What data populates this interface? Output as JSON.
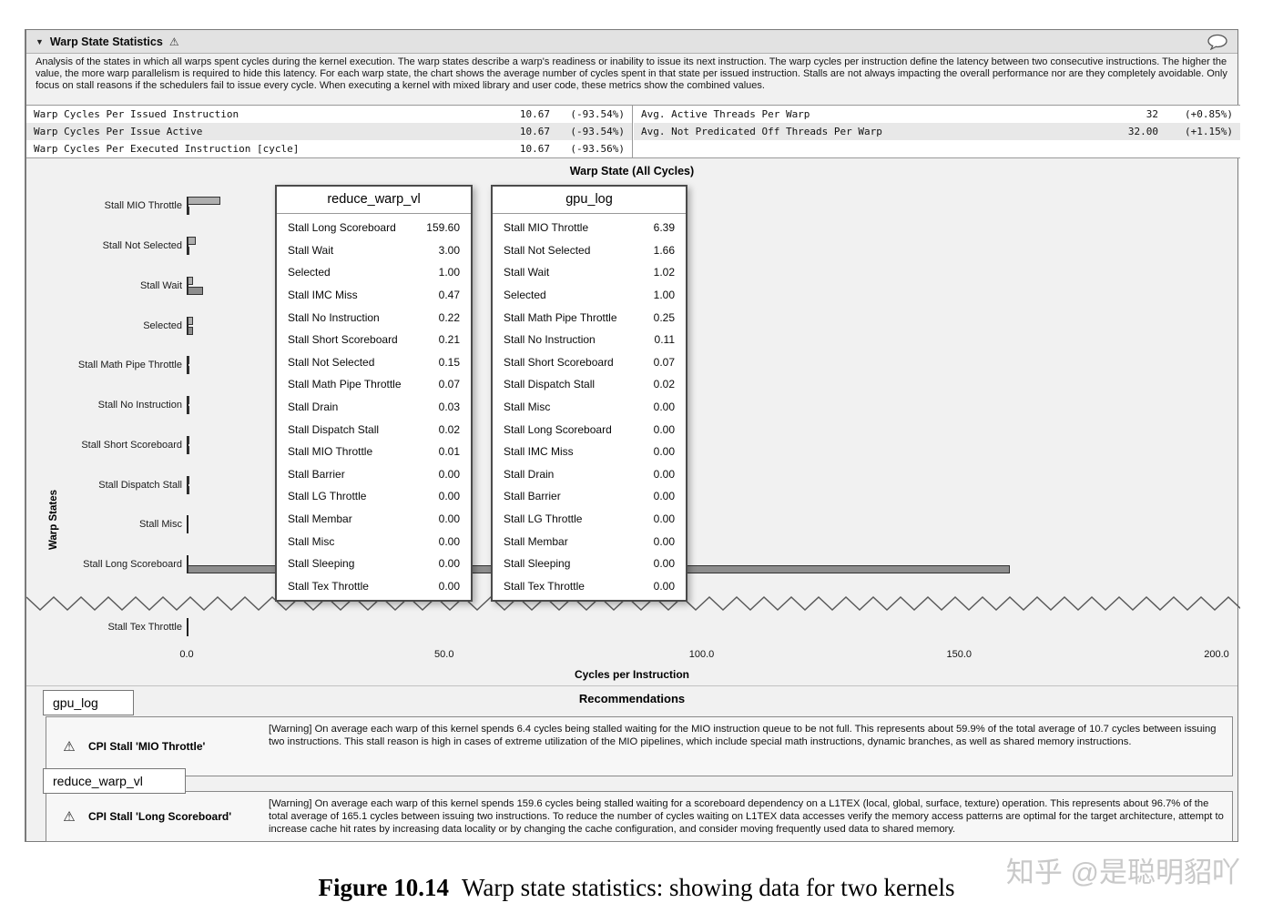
{
  "header": {
    "collapse_arrow": "▼",
    "title": "Warp State Statistics",
    "warning_icon": "⚠"
  },
  "description": "Analysis of the states in which all warps spent cycles during the kernel execution. The warp states describe a warp's readiness or inability to issue its next instruction. The warp cycles per instruction define the latency between two consecutive instructions. The higher the value, the more warp parallelism is required to hide this latency. For each warp state, the chart shows the average number of cycles spent in that state per issued instruction. Stalls are not always impacting the overall performance nor are they completely avoidable. Only focus on stall reasons if the schedulers fail to issue every cycle. When executing a kernel with mixed library and user code, these metrics show the combined values.",
  "metrics": {
    "left": [
      {
        "label": "Warp Cycles Per Issued Instruction",
        "value": "10.67",
        "delta": "(-93.54%)"
      },
      {
        "label": "Warp Cycles Per Issue Active",
        "value": "10.67",
        "delta": "(-93.54%)"
      },
      {
        "label": "Warp Cycles Per Executed Instruction [cycle]",
        "value": "10.67",
        "delta": "(-93.56%)"
      }
    ],
    "right": [
      {
        "label": "Avg. Active Threads Per Warp",
        "value": "32",
        "delta": "(+0.85%)"
      },
      {
        "label": "Avg. Not Predicated Off Threads Per Warp",
        "value": "32.00",
        "delta": "(+1.15%)"
      }
    ]
  },
  "chart_data": {
    "type": "bar",
    "orientation": "horizontal",
    "title": "Warp State (All Cycles)",
    "xlabel": "Cycles per Instruction",
    "ylabel": "Warp States",
    "xlim": [
      0,
      200
    ],
    "x_ticks": [
      "0.0",
      "50.0",
      "100.0",
      "150.0",
      "200.0"
    ],
    "axis_break_after": "Stall Long Scoreboard",
    "categories": [
      "Stall MIO Throttle",
      "Stall Not Selected",
      "Stall Wait",
      "Selected",
      "Stall Math Pipe Throttle",
      "Stall No Instruction",
      "Stall Short Scoreboard",
      "Stall Dispatch Stall",
      "Stall Misc",
      "Stall Long Scoreboard",
      "Stall Tex Throttle"
    ],
    "series": [
      {
        "name": "gpu_log",
        "color": "#aeaeae",
        "values": [
          6.39,
          1.66,
          1.02,
          1.0,
          0.25,
          0.11,
          0.07,
          0.02,
          0.0,
          0.0,
          0.0
        ]
      },
      {
        "name": "reduce_warp_vl",
        "color": "#8d8d8d",
        "values": [
          0.01,
          0.15,
          3.0,
          1.0,
          0.07,
          0.22,
          0.21,
          0.02,
          0.0,
          159.6,
          0.0
        ]
      }
    ]
  },
  "tooltips": [
    {
      "title": "reduce_warp_vl",
      "rows": [
        {
          "label": "Stall Long Scoreboard",
          "value": "159.60"
        },
        {
          "label": "Stall Wait",
          "value": "3.00"
        },
        {
          "label": "Selected",
          "value": "1.00"
        },
        {
          "label": "Stall IMC Miss",
          "value": "0.47"
        },
        {
          "label": "Stall No Instruction",
          "value": "0.22"
        },
        {
          "label": "Stall Short Scoreboard",
          "value": "0.21"
        },
        {
          "label": "Stall Not Selected",
          "value": "0.15"
        },
        {
          "label": "Stall Math Pipe Throttle",
          "value": "0.07"
        },
        {
          "label": "Stall Drain",
          "value": "0.03"
        },
        {
          "label": "Stall Dispatch Stall",
          "value": "0.02"
        },
        {
          "label": "Stall MIO Throttle",
          "value": "0.01"
        },
        {
          "label": "Stall Barrier",
          "value": "0.00"
        },
        {
          "label": "Stall LG Throttle",
          "value": "0.00"
        },
        {
          "label": "Stall Membar",
          "value": "0.00"
        },
        {
          "label": "Stall Misc",
          "value": "0.00"
        },
        {
          "label": "Stall Sleeping",
          "value": "0.00"
        },
        {
          "label": "Stall Tex Throttle",
          "value": "0.00"
        }
      ]
    },
    {
      "title": "gpu_log",
      "rows": [
        {
          "label": "Stall MIO Throttle",
          "value": "6.39"
        },
        {
          "label": "Stall Not Selected",
          "value": "1.66"
        },
        {
          "label": "Stall Wait",
          "value": "1.02"
        },
        {
          "label": "Selected",
          "value": "1.00"
        },
        {
          "label": "Stall Math Pipe Throttle",
          "value": "0.25"
        },
        {
          "label": "Stall No Instruction",
          "value": "0.11"
        },
        {
          "label": "Stall Short Scoreboard",
          "value": "0.07"
        },
        {
          "label": "Stall Dispatch Stall",
          "value": "0.02"
        },
        {
          "label": "Stall Misc",
          "value": "0.00"
        },
        {
          "label": "Stall Long Scoreboard",
          "value": "0.00"
        },
        {
          "label": "Stall IMC Miss",
          "value": "0.00"
        },
        {
          "label": "Stall Drain",
          "value": "0.00"
        },
        {
          "label": "Stall Barrier",
          "value": "0.00"
        },
        {
          "label": "Stall LG Throttle",
          "value": "0.00"
        },
        {
          "label": "Stall Membar",
          "value": "0.00"
        },
        {
          "label": "Stall Sleeping",
          "value": "0.00"
        },
        {
          "label": "Stall Tex Throttle",
          "value": "0.00"
        }
      ]
    }
  ],
  "recommendations": {
    "title": "Recommendations",
    "items": [
      {
        "kernel": "gpu_log",
        "warning_icon": "⚠",
        "rule": "CPI Stall 'MIO Throttle'",
        "text": "[Warning] On average each warp of this kernel spends 6.4 cycles being stalled waiting for the MIO instruction queue to be not full. This represents about 59.9% of the total average of 10.7 cycles between issuing two instructions. This stall reason is high in cases of extreme utilization of the MIO pipelines, which include special math instructions, dynamic branches, as well as shared memory instructions."
      },
      {
        "kernel": "reduce_warp_vl",
        "warning_icon": "⚠",
        "rule": "CPI Stall 'Long Scoreboard'",
        "text": "[Warning] On average each warp of this kernel spends 159.6 cycles being stalled waiting for a scoreboard dependency on a L1TEX (local, global, surface, texture) operation. This represents about 96.7% of the total average of 165.1 cycles between issuing two instructions. To reduce the number of cycles waiting on L1TEX data accesses verify the memory access patterns are optimal for the target architecture, attempt to increase cache hit rates by increasing data locality or by changing the cache configuration, and consider moving frequently used data to shared memory."
      }
    ]
  },
  "caption": {
    "label": "Figure 10.14",
    "text": "Warp state statistics: showing data for two kernels"
  },
  "watermark": "知乎 @是聪明貂吖"
}
